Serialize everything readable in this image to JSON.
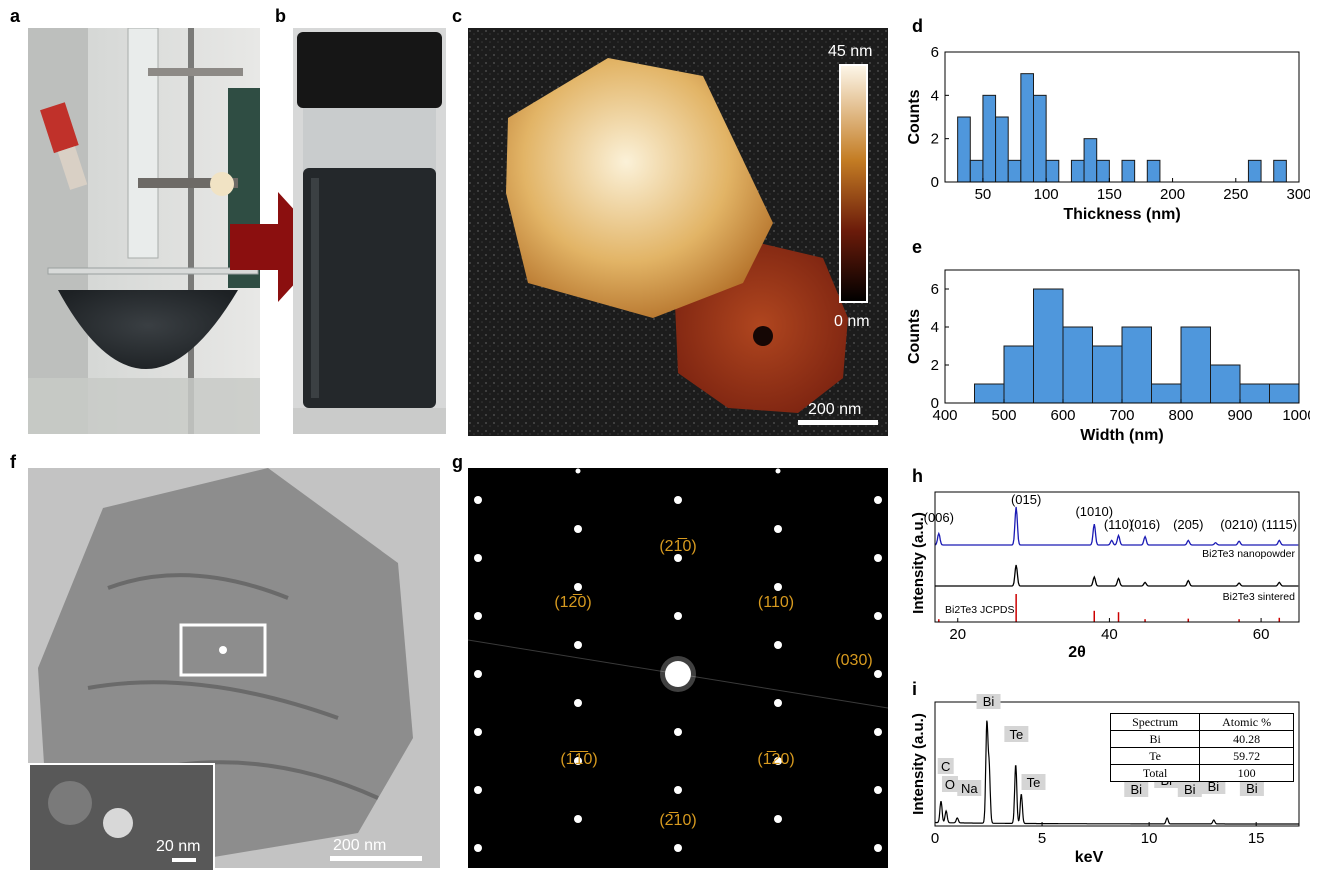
{
  "panel_labels": [
    "a",
    "b",
    "c",
    "d",
    "e",
    "f",
    "g",
    "h",
    "i"
  ],
  "afm": {
    "colorbar_max": "45 nm",
    "colorbar_min": "0 nm",
    "scale_bar": "200 nm"
  },
  "tem": {
    "scale_bar": "200 nm",
    "inset_scale_bar": "20 nm"
  },
  "saed": {
    "spots": [
      "(2̅2̅̅1̅0)",
      "(1̅2̅0)",
      "(110)",
      "(030)",
      "(1̅1̅0)",
      "(̅1̅20)",
      "(̅2̅10)"
    ]
  },
  "saed_labels": [
    "(21̅0)",
    "(12̅0)",
    "(110)",
    "(030)",
    "(1̅1̅0)",
    "(1̅20)",
    "(2̅10)"
  ],
  "colors": {
    "hist_fill": "#4f97dc",
    "nano_line": "#1a1ab4",
    "jcpds": "#cc0000",
    "arrow": "#8b0f0f",
    "saed_label": "#d79a1f"
  },
  "chart_data": [
    {
      "type": "bar",
      "panel": "d",
      "xlabel": "Thickness (nm)",
      "ylabel": "Counts",
      "bin_width": 10,
      "x": [
        30,
        40,
        50,
        60,
        70,
        80,
        90,
        100,
        110,
        120,
        130,
        140,
        150,
        160,
        170,
        180,
        190,
        200,
        210,
        220,
        230,
        240,
        250,
        260,
        270,
        280
      ],
      "values": [
        3,
        1,
        4,
        3,
        1,
        5,
        4,
        1,
        0,
        1,
        2,
        1,
        0,
        1,
        0,
        1,
        0,
        0,
        0,
        0,
        0,
        0,
        0,
        1,
        0,
        1
      ],
      "xlim": [
        20,
        300
      ],
      "ylim": [
        0,
        6
      ],
      "xticks": [
        "50",
        "100",
        "150",
        "200",
        "250",
        "300"
      ],
      "yticks": [
        "0",
        "2",
        "4",
        "6"
      ]
    },
    {
      "type": "bar",
      "panel": "e",
      "xlabel": "Width (nm)",
      "ylabel": "Counts",
      "bin_width": 50,
      "x": [
        450,
        500,
        550,
        600,
        650,
        700,
        750,
        800,
        850,
        900,
        950
      ],
      "values": [
        1,
        3,
        6,
        4,
        3,
        4,
        1,
        4,
        2,
        1,
        1
      ],
      "xlim": [
        400,
        1000
      ],
      "ylim": [
        0,
        7
      ],
      "xticks": [
        "400",
        "500",
        "600",
        "700",
        "800",
        "900",
        "1000"
      ],
      "yticks": [
        "0",
        "2",
        "4",
        "6"
      ]
    },
    {
      "type": "line",
      "panel": "h",
      "xlabel": "2θ",
      "ylabel": "Intensity (a.u.)",
      "xlim": [
        17,
        65
      ],
      "xticks": [
        "20",
        "40",
        "60"
      ],
      "series": [
        {
          "name": "Bi2Te3 nanopowder",
          "peaks": [
            [
              17.5,
              0.3
            ],
            [
              27.7,
              1.0
            ],
            [
              38.0,
              0.55
            ],
            [
              40.3,
              0.12
            ],
            [
              41.2,
              0.25
            ],
            [
              44.7,
              0.22
            ],
            [
              50.4,
              0.12
            ],
            [
              54.0,
              0.06
            ],
            [
              57.1,
              0.1
            ],
            [
              62.4,
              0.12
            ]
          ]
        },
        {
          "name": "Bi2Te3 sintered",
          "peaks": [
            [
              27.7,
              0.7
            ],
            [
              38.0,
              0.3
            ],
            [
              41.2,
              0.25
            ],
            [
              44.7,
              0.12
            ],
            [
              50.4,
              0.18
            ],
            [
              57.1,
              0.1
            ],
            [
              62.4,
              0.12
            ]
          ]
        },
        {
          "name": "Bi2Te3 JCPDS",
          "sticks": [
            [
              17.5,
              0.1
            ],
            [
              27.7,
              1.0
            ],
            [
              38.0,
              0.4
            ],
            [
              41.2,
              0.35
            ],
            [
              44.7,
              0.1
            ],
            [
              50.4,
              0.12
            ],
            [
              57.1,
              0.1
            ],
            [
              62.4,
              0.15
            ]
          ]
        }
      ],
      "peak_labels": [
        {
          "x": 17.5,
          "text": "(006)"
        },
        {
          "x": 27.7,
          "text": "(015)"
        },
        {
          "x": 38.0,
          "text": "(1010)"
        },
        {
          "x": 41.2,
          "text": "(110)"
        },
        {
          "x": 44.7,
          "text": "(016)"
        },
        {
          "x": 50.4,
          "text": "(205)"
        },
        {
          "x": 57.1,
          "text": "(0210)"
        },
        {
          "x": 62.4,
          "text": "(1115)"
        }
      ]
    },
    {
      "type": "line",
      "panel": "i",
      "xlabel": "keV",
      "ylabel": "Intensity (a.u.)",
      "xlim": [
        0,
        17
      ],
      "xticks": [
        "0",
        "5",
        "10",
        "15"
      ],
      "peaks": [
        [
          0.28,
          0.22
        ],
        [
          0.52,
          0.12
        ],
        [
          1.04,
          0.05
        ],
        [
          2.42,
          1.0
        ],
        [
          2.53,
          0.55
        ],
        [
          3.77,
          0.6
        ],
        [
          4.03,
          0.3
        ],
        [
          10.84,
          0.06
        ],
        [
          13.02,
          0.04
        ]
      ],
      "peak_labels": [
        {
          "x": 0.5,
          "text": "C"
        },
        {
          "x": 0.7,
          "text": "O"
        },
        {
          "x": 1.6,
          "text": "Na"
        },
        {
          "x": 2.5,
          "text": "Bi"
        },
        {
          "x": 3.8,
          "text": "Te"
        },
        {
          "x": 4.6,
          "text": "Te"
        },
        {
          "x": 9.4,
          "text": "Bi"
        },
        {
          "x": 10.8,
          "text": "Bi"
        },
        {
          "x": 11.9,
          "text": "Bi"
        },
        {
          "x": 13.0,
          "text": "Bi"
        },
        {
          "x": 14.8,
          "text": "Bi"
        }
      ],
      "table": {
        "headers": [
          "Spectrum",
          "Atomic %"
        ],
        "rows": [
          [
            "Bi",
            "40.28"
          ],
          [
            "Te",
            "59.72"
          ],
          [
            "Total",
            "100"
          ]
        ]
      }
    }
  ]
}
